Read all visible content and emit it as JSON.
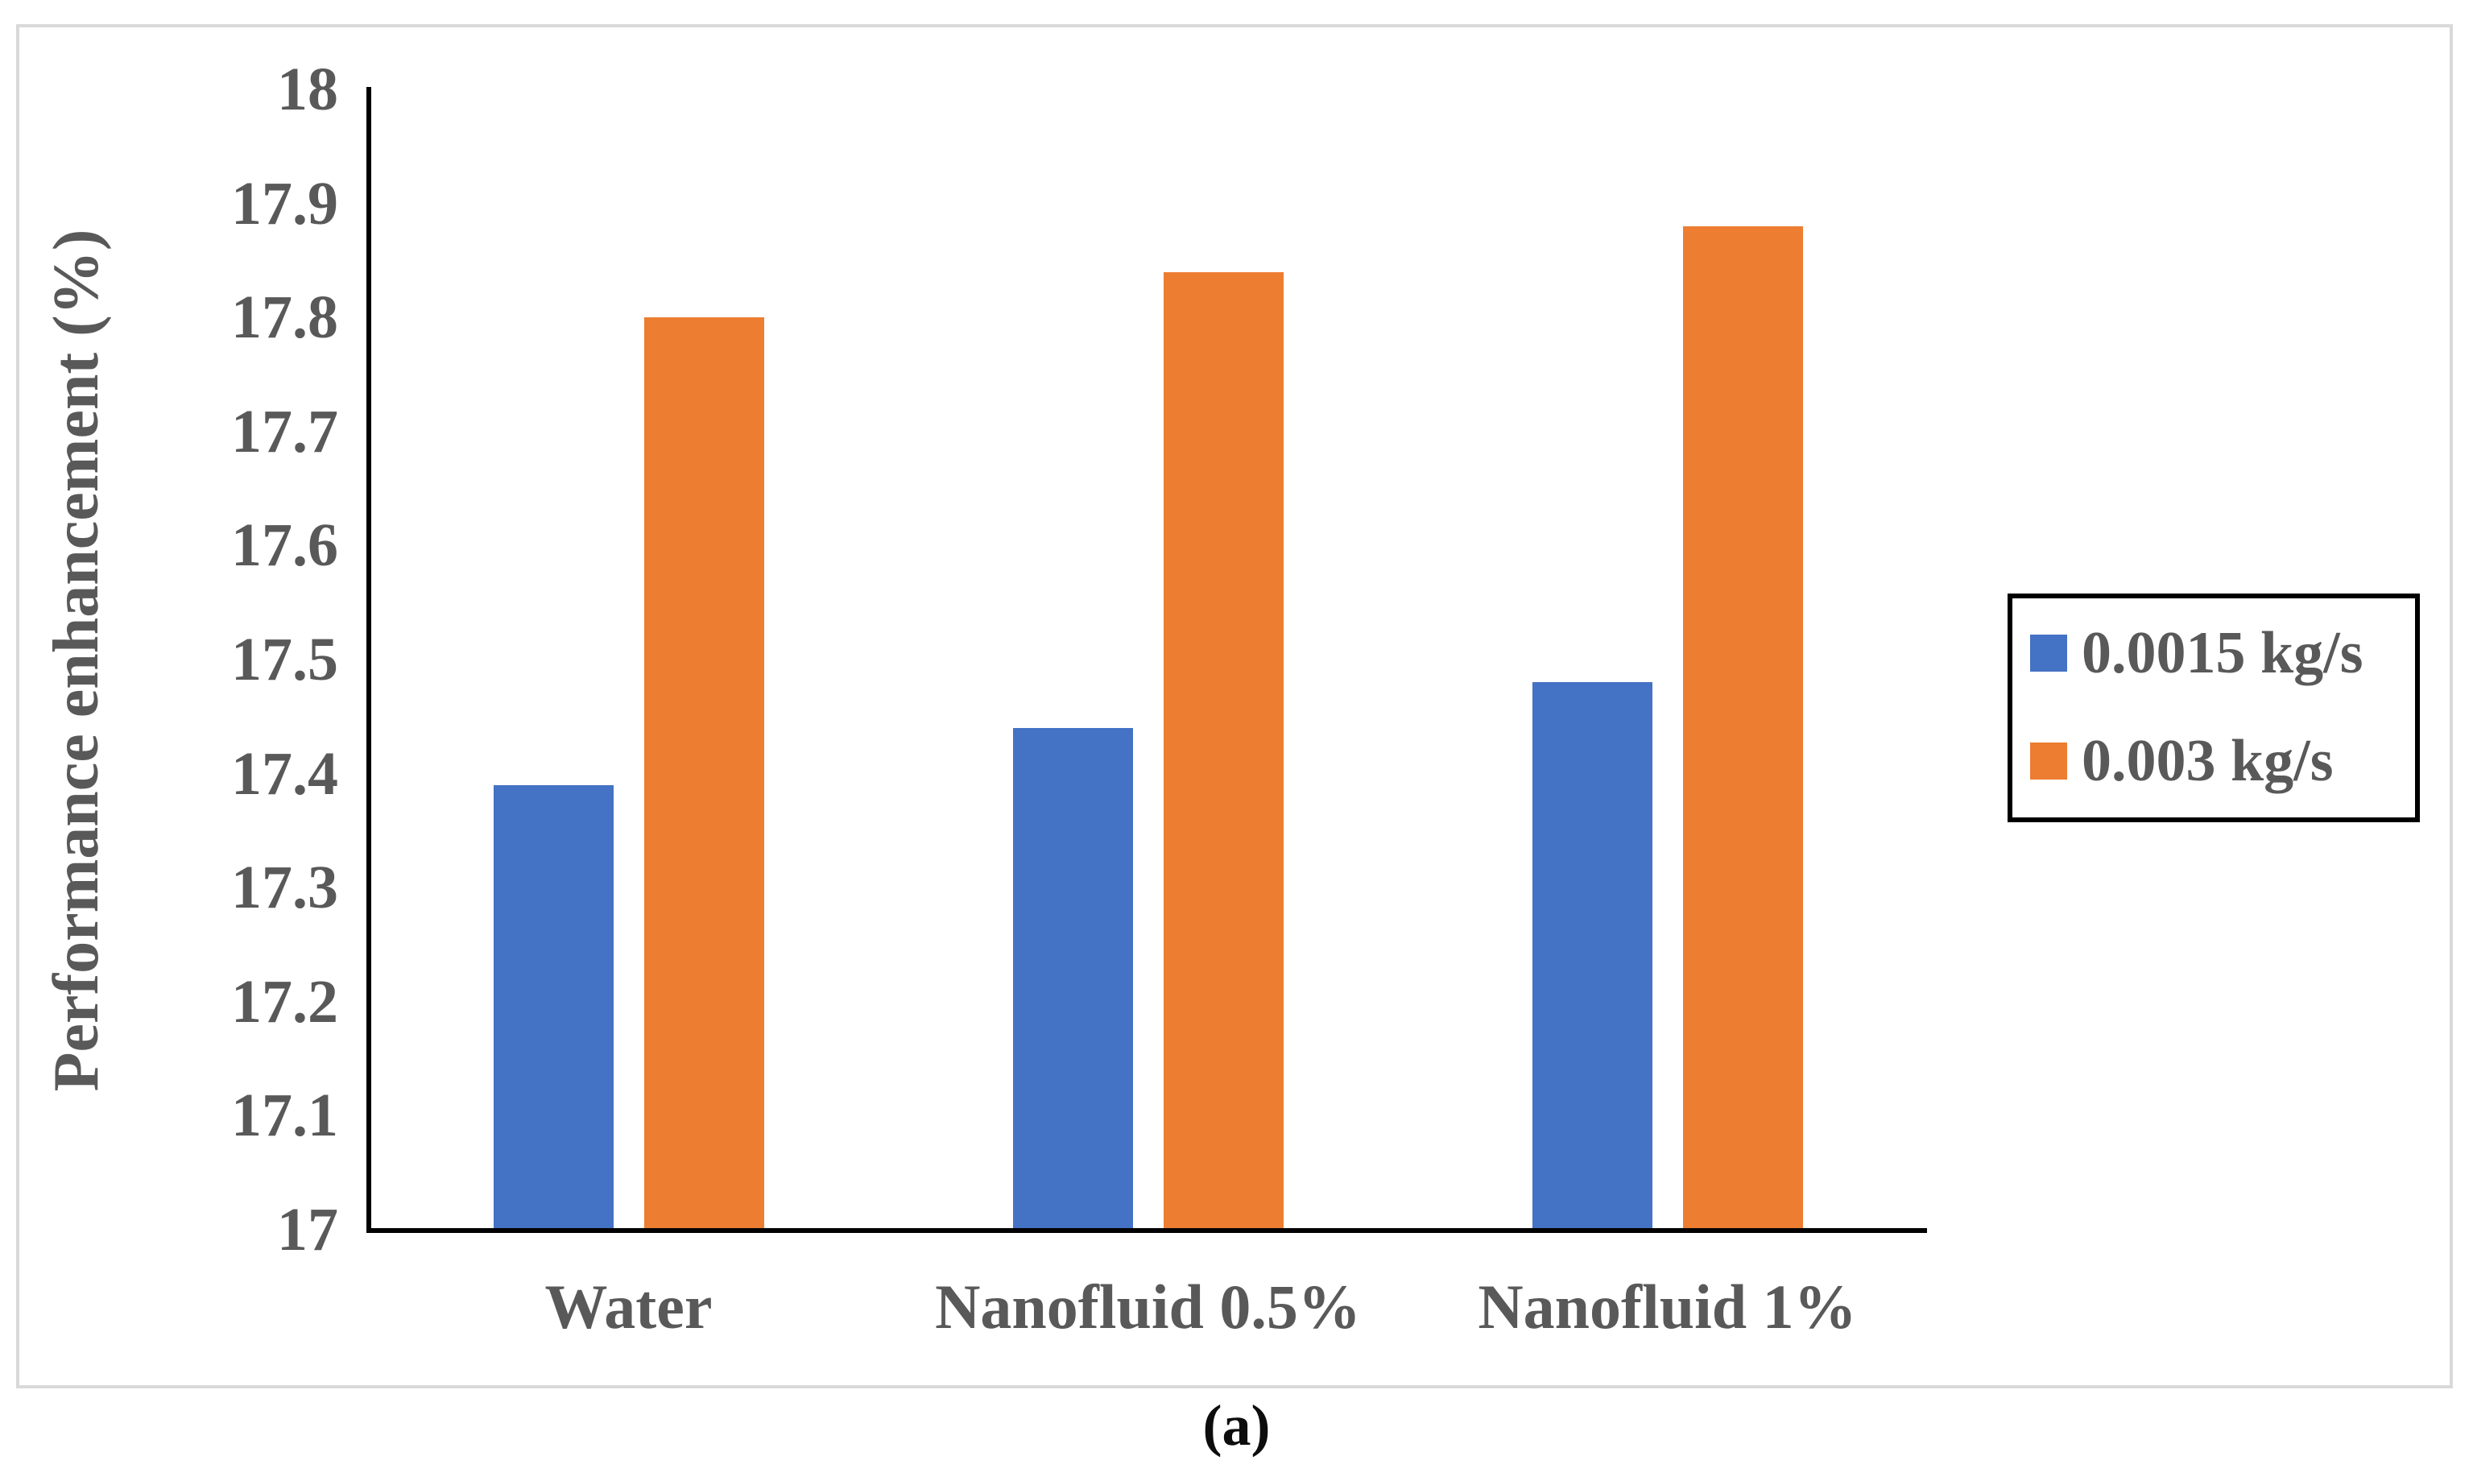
{
  "figure": {
    "caption": "(a)",
    "border_color": "#D9D9D9",
    "background": "#ffffff"
  },
  "chart_data": {
    "type": "bar",
    "title": "",
    "categories": [
      "Water",
      "Nanofluid 0.5%",
      "Nanofluid 1%"
    ],
    "series": [
      {
        "name": "0.0015 kg/s",
        "color": "#4472C4",
        "values": [
          17.39,
          17.44,
          17.48
        ]
      },
      {
        "name": "0.003 kg/s",
        "color": "#ED7D31",
        "values": [
          17.8,
          17.84,
          17.88
        ]
      }
    ],
    "xlabel": "",
    "ylabel": "Performance enhancement (%)",
    "ylim": [
      17,
      18
    ],
    "ytick_step": 0.1,
    "ytick_labels": [
      "17",
      "17.1",
      "17.2",
      "17.3",
      "17.4",
      "17.5",
      "17.6",
      "17.7",
      "17.8",
      "17.9",
      "18"
    ],
    "grid": false,
    "legend_position": "right",
    "text_color": "#595959",
    "axis_color": "#000000"
  }
}
